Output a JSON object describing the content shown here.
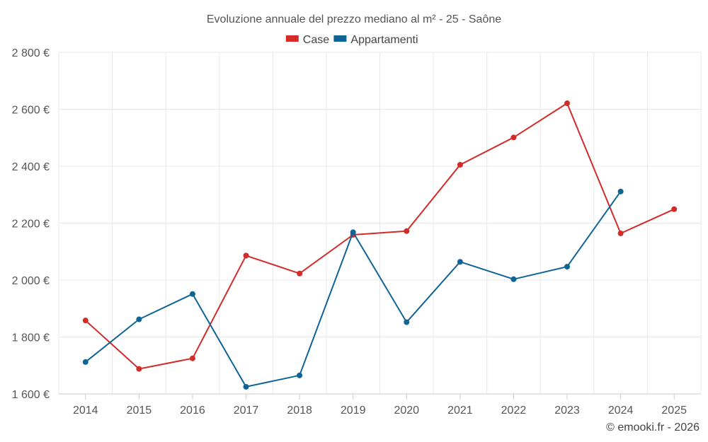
{
  "chart_data": {
    "type": "line",
    "title": "Evoluzione annuale del prezzo mediano al m² - 25 - Saône",
    "categories": [
      "2014",
      "2015",
      "2016",
      "2017",
      "2018",
      "2019",
      "2020",
      "2021",
      "2022",
      "2023",
      "2024",
      "2025"
    ],
    "series": [
      {
        "name": "Case",
        "color": "#d32a2a",
        "values": [
          1858,
          1688,
          1725,
          2086,
          2023,
          2159,
          2172,
          2405,
          2501,
          2621,
          2164,
          2249
        ]
      },
      {
        "name": "Appartamenti",
        "color": "#0f6496",
        "values": [
          1712,
          1862,
          1951,
          1625,
          1665,
          2168,
          1852,
          2064,
          2003,
          2047,
          2311,
          null
        ]
      }
    ],
    "ylim": [
      1600,
      2800
    ],
    "yticks": [
      1600,
      1800,
      2000,
      2200,
      2400,
      2600,
      2800
    ],
    "ytick_labels": [
      "1 600 €",
      "1 800 €",
      "2 000 €",
      "2 200 €",
      "2 400 €",
      "2 600 €",
      "2 800 €"
    ],
    "xlabel": "",
    "ylabel": "",
    "grid": true,
    "legend_position": "top-center"
  },
  "credit": "© emooki.fr - 2026"
}
